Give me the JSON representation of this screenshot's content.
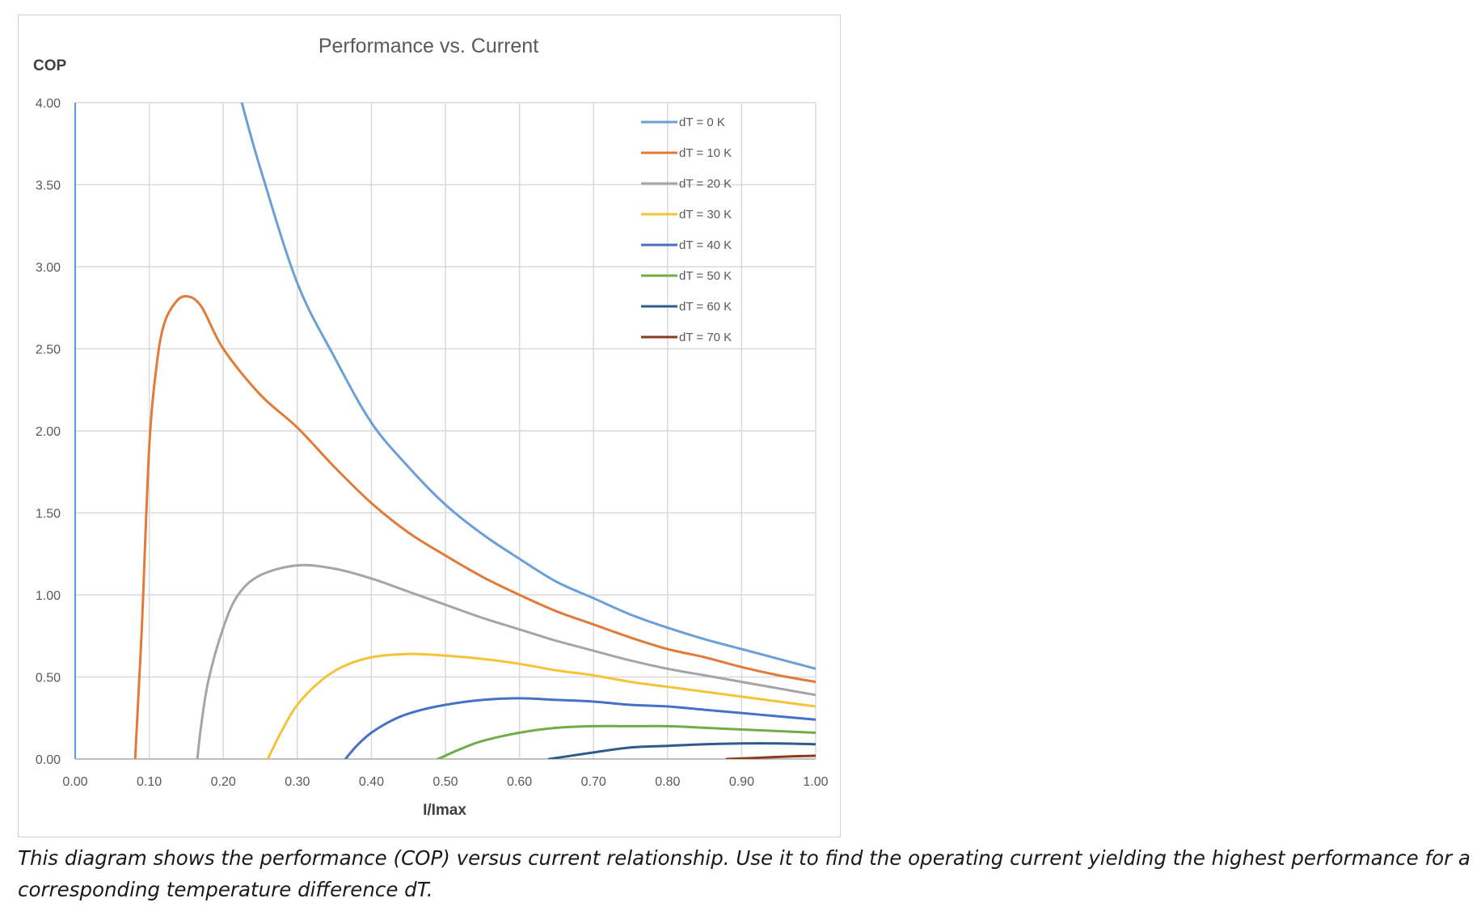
{
  "caption": "This diagram shows the performance (COP) versus current relationship. Use it to find the operating current yielding the highest performance for a corresponding temperature difference dT.",
  "chart_data": {
    "type": "line",
    "title": "Performance vs. Current",
    "xlabel": "I/Imax",
    "ylabel": "COP",
    "xlim": [
      0,
      1
    ],
    "ylim": [
      0,
      4
    ],
    "x_ticks": [
      "0.00",
      "0.10",
      "0.20",
      "0.30",
      "0.40",
      "0.50",
      "0.60",
      "0.70",
      "0.80",
      "0.90",
      "1.00"
    ],
    "y_ticks": [
      "0.00",
      "0.50",
      "1.00",
      "1.50",
      "2.00",
      "2.50",
      "3.00",
      "3.50",
      "4.00"
    ],
    "grid": true,
    "legend_position": "top-right",
    "series": [
      {
        "name": "dT = 0 K",
        "color": "#6a9fd8",
        "points": [
          [
            0.225,
            4.0
          ],
          [
            0.25,
            3.6
          ],
          [
            0.3,
            2.9
          ],
          [
            0.35,
            2.45
          ],
          [
            0.4,
            2.05
          ],
          [
            0.45,
            1.78
          ],
          [
            0.5,
            1.55
          ],
          [
            0.55,
            1.37
          ],
          [
            0.6,
            1.22
          ],
          [
            0.65,
            1.08
          ],
          [
            0.7,
            0.98
          ],
          [
            0.75,
            0.88
          ],
          [
            0.8,
            0.8
          ],
          [
            0.85,
            0.73
          ],
          [
            0.9,
            0.67
          ],
          [
            0.95,
            0.61
          ],
          [
            1.0,
            0.55
          ]
        ]
      },
      {
        "name": "dT = 10 K",
        "color": "#e07b39",
        "points": [
          [
            0.081,
            0.0
          ],
          [
            0.09,
            0.8
          ],
          [
            0.1,
            1.9
          ],
          [
            0.11,
            2.4
          ],
          [
            0.12,
            2.65
          ],
          [
            0.135,
            2.78
          ],
          [
            0.15,
            2.82
          ],
          [
            0.17,
            2.76
          ],
          [
            0.2,
            2.5
          ],
          [
            0.25,
            2.22
          ],
          [
            0.3,
            2.02
          ],
          [
            0.35,
            1.78
          ],
          [
            0.4,
            1.56
          ],
          [
            0.45,
            1.38
          ],
          [
            0.5,
            1.24
          ],
          [
            0.55,
            1.11
          ],
          [
            0.6,
            1.0
          ],
          [
            0.65,
            0.9
          ],
          [
            0.7,
            0.82
          ],
          [
            0.75,
            0.74
          ],
          [
            0.8,
            0.67
          ],
          [
            0.85,
            0.62
          ],
          [
            0.9,
            0.56
          ],
          [
            0.95,
            0.51
          ],
          [
            1.0,
            0.47
          ]
        ]
      },
      {
        "name": "dT = 20 K",
        "color": "#a5a5a5",
        "points": [
          [
            0.165,
            0.0
          ],
          [
            0.17,
            0.2
          ],
          [
            0.18,
            0.48
          ],
          [
            0.2,
            0.8
          ],
          [
            0.22,
            1.0
          ],
          [
            0.25,
            1.12
          ],
          [
            0.3,
            1.18
          ],
          [
            0.35,
            1.16
          ],
          [
            0.4,
            1.1
          ],
          [
            0.45,
            1.02
          ],
          [
            0.5,
            0.94
          ],
          [
            0.55,
            0.86
          ],
          [
            0.6,
            0.79
          ],
          [
            0.65,
            0.72
          ],
          [
            0.7,
            0.66
          ],
          [
            0.75,
            0.6
          ],
          [
            0.8,
            0.55
          ],
          [
            0.85,
            0.51
          ],
          [
            0.9,
            0.47
          ],
          [
            0.95,
            0.43
          ],
          [
            1.0,
            0.39
          ]
        ]
      },
      {
        "name": "dT = 30 K",
        "color": "#f5c338",
        "points": [
          [
            0.26,
            0.0
          ],
          [
            0.28,
            0.18
          ],
          [
            0.3,
            0.33
          ],
          [
            0.33,
            0.47
          ],
          [
            0.36,
            0.56
          ],
          [
            0.4,
            0.62
          ],
          [
            0.45,
            0.64
          ],
          [
            0.5,
            0.63
          ],
          [
            0.55,
            0.61
          ],
          [
            0.6,
            0.58
          ],
          [
            0.65,
            0.54
          ],
          [
            0.7,
            0.51
          ],
          [
            0.75,
            0.47
          ],
          [
            0.8,
            0.44
          ],
          [
            0.85,
            0.41
          ],
          [
            0.9,
            0.38
          ],
          [
            0.95,
            0.35
          ],
          [
            1.0,
            0.32
          ]
        ]
      },
      {
        "name": "dT = 40 K",
        "color": "#4472c4",
        "points": [
          [
            0.365,
            0.0
          ],
          [
            0.38,
            0.08
          ],
          [
            0.4,
            0.16
          ],
          [
            0.43,
            0.24
          ],
          [
            0.46,
            0.29
          ],
          [
            0.5,
            0.33
          ],
          [
            0.55,
            0.36
          ],
          [
            0.6,
            0.37
          ],
          [
            0.65,
            0.36
          ],
          [
            0.7,
            0.35
          ],
          [
            0.75,
            0.33
          ],
          [
            0.8,
            0.32
          ],
          [
            0.85,
            0.3
          ],
          [
            0.9,
            0.28
          ],
          [
            0.95,
            0.26
          ],
          [
            1.0,
            0.24
          ]
        ]
      },
      {
        "name": "dT = 50 K",
        "color": "#70ad47",
        "points": [
          [
            0.49,
            0.0
          ],
          [
            0.52,
            0.06
          ],
          [
            0.55,
            0.11
          ],
          [
            0.6,
            0.16
          ],
          [
            0.65,
            0.19
          ],
          [
            0.7,
            0.2
          ],
          [
            0.75,
            0.2
          ],
          [
            0.8,
            0.2
          ],
          [
            0.85,
            0.19
          ],
          [
            0.9,
            0.18
          ],
          [
            0.95,
            0.17
          ],
          [
            1.0,
            0.16
          ]
        ]
      },
      {
        "name": "dT = 60 K",
        "color": "#2e5c8a",
        "points": [
          [
            0.64,
            0.0
          ],
          [
            0.67,
            0.02
          ],
          [
            0.7,
            0.04
          ],
          [
            0.75,
            0.07
          ],
          [
            0.8,
            0.08
          ],
          [
            0.85,
            0.09
          ],
          [
            0.9,
            0.095
          ],
          [
            0.95,
            0.095
          ],
          [
            1.0,
            0.09
          ]
        ]
      },
      {
        "name": "dT = 70 K",
        "color": "#8b3a1a",
        "points": [
          [
            0.88,
            0.0
          ],
          [
            0.92,
            0.007
          ],
          [
            0.96,
            0.015
          ],
          [
            1.0,
            0.02
          ]
        ]
      }
    ]
  }
}
